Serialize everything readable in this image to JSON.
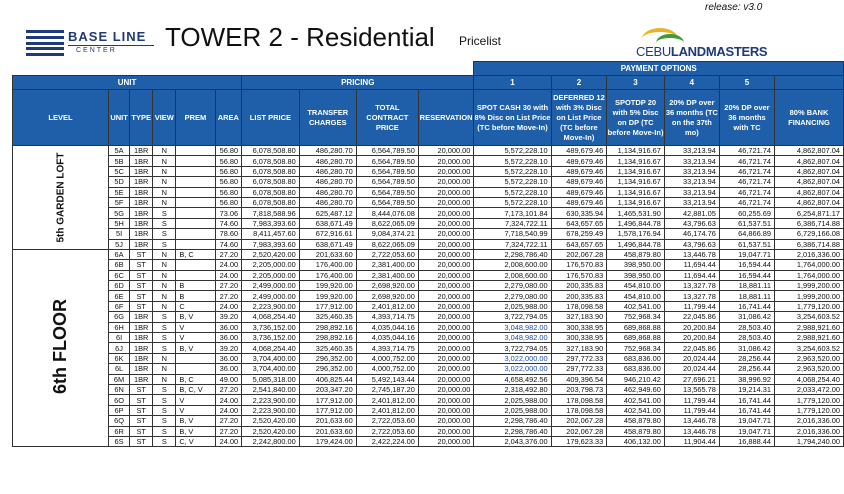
{
  "header": {
    "release": "release: v3.0",
    "brand_name": "BASE LINE",
    "brand_sub": "CENTER",
    "title": "TOWER 2 - Residential",
    "subtitle": "Pricelist",
    "developer_logo_a": "CEBU",
    "developer_logo_b": "LANDMASTERS"
  },
  "table": {
    "group_unit": "UNIT",
    "group_pricing": "PRICING",
    "group_payment": "PAYMENT OPTIONS",
    "option_numbers": [
      "1",
      "2",
      "3",
      "4",
      "5",
      ""
    ],
    "columns": {
      "level": "LEVEL",
      "unit": "UNIT",
      "type": "TYPE",
      "view": "VIEW",
      "prem": "PREM",
      "area": "AREA",
      "list_price": "LIST PRICE",
      "transfer": "TRANSFER CHARGES",
      "tcp": "TOTAL CONTRACT PRICE",
      "reservation": "RESERVATION",
      "opt1": "SPOT CASH 30 with 8% Disc on List Price (TC before Move-In)",
      "opt2": "DEFERRED 12 with 3% Disc on List Price (TC before Move-In)",
      "opt3": "SPOTDP 20 with 5% Disc on DP (TC before Move-In)",
      "opt4": "20% DP over 36 months (TC on the 37th mo)",
      "opt5": "20% DP over 36 months with TC",
      "opt6": "80% BANK FINANCING"
    },
    "levels": [
      {
        "name": "5th GARDEN LOFT",
        "rows": [
          [
            "5A",
            "1BR",
            "N",
            "",
            "56.80",
            "6,078,508.80",
            "486,280.70",
            "6,564,789.50",
            "20,000.00",
            "5,572,228.10",
            "489,679.46",
            "1,134,916.67",
            "33,213.94",
            "46,721.74",
            "4,862,807.04"
          ],
          [
            "5B",
            "1BR",
            "N",
            "",
            "56.80",
            "6,078,508.80",
            "486,280.70",
            "6,564,789.50",
            "20,000.00",
            "5,572,228.10",
            "489,679.46",
            "1,134,916.67",
            "33,213.94",
            "46,721.74",
            "4,862,807.04"
          ],
          [
            "5C",
            "1BR",
            "N",
            "",
            "56.80",
            "6,078,508.80",
            "486,280.70",
            "6,564,789.50",
            "20,000.00",
            "5,572,228.10",
            "489,679.46",
            "1,134,916.67",
            "33,213.94",
            "46,721.74",
            "4,862,807.04"
          ],
          [
            "5D",
            "1BR",
            "N",
            "",
            "56.80",
            "6,078,508.80",
            "486,280.70",
            "6,564,789.50",
            "20,000.00",
            "5,572,228.10",
            "489,679.46",
            "1,134,916.67",
            "33,213.94",
            "46,721.74",
            "4,862,807.04"
          ],
          [
            "5E",
            "1BR",
            "N",
            "",
            "56.80",
            "6,078,508.80",
            "486,280.70",
            "6,564,789.50",
            "20,000.00",
            "5,572,228.10",
            "489,679.46",
            "1,134,916.67",
            "33,213.94",
            "46,721.74",
            "4,862,807.04"
          ],
          [
            "5F",
            "1BR",
            "N",
            "",
            "56.80",
            "6,078,508.80",
            "486,280.70",
            "6,564,789.50",
            "20,000.00",
            "5,572,228.10",
            "489,679.46",
            "1,134,916.67",
            "33,213.94",
            "46,721.74",
            "4,862,807.04"
          ],
          [
            "5G",
            "1BR",
            "S",
            "",
            "73.06",
            "7,818,588.96",
            "625,487.12",
            "8,444,076.08",
            "20,000.00",
            "7,173,101.84",
            "630,335.94",
            "1,465,531.90",
            "42,881.05",
            "60,255.69",
            "6,254,871.17"
          ],
          [
            "5H",
            "1BR",
            "S",
            "",
            "74.60",
            "7,983,393.60",
            "638,671.49",
            "8,622,065.09",
            "20,000.00",
            "7,324,722.11",
            "643,657.65",
            "1,496,844.78",
            "43,796.63",
            "61,537.51",
            "6,386,714.88"
          ],
          [
            "5I",
            "1BR",
            "S",
            "",
            "78.60",
            "8,411,457.60",
            "672,916.61",
            "9,084,374.21",
            "20,000.00",
            "7,718,540.99",
            "678,259.49",
            "1,578,176.94",
            "46,174.76",
            "64,866.89",
            "6,729,166.08"
          ],
          [
            "5J",
            "1BR",
            "S",
            "",
            "74.60",
            "7,983,393.60",
            "638,671.49",
            "8,622,065.09",
            "20,000.00",
            "7,324,722.11",
            "643,657.65",
            "1,496,844.78",
            "43,796.63",
            "61,537.51",
            "6,386,714.88"
          ]
        ]
      },
      {
        "name": "6th FLOOR",
        "rows": [
          [
            "6A",
            "ST",
            "N",
            "B, C",
            "27.20",
            "2,520,420.00",
            "201,633.60",
            "2,722,053.60",
            "20,000.00",
            "2,298,786.40",
            "202,067.28",
            "458,879.80",
            "13,446.78",
            "19,047.71",
            "2,016,336.00"
          ],
          [
            "6B",
            "ST",
            "N",
            "",
            "24.00",
            "2,205,000.00",
            "176,400.00",
            "2,381,400.00",
            "20,000.00",
            "2,008,600.00",
            "176,570.83",
            "398,950.00",
            "11,694.44",
            "16,594.44",
            "1,764,000.00"
          ],
          [
            "6C",
            "ST",
            "N",
            "",
            "24.00",
            "2,205,000.00",
            "176,400.00",
            "2,381,400.00",
            "20,000.00",
            "2,008,600.00",
            "176,570.83",
            "398,950.00",
            "11,694.44",
            "16,594.44",
            "1,764,000.00"
          ],
          [
            "6D",
            "ST",
            "N",
            "B",
            "27.20",
            "2,499,000.00",
            "199,920.00",
            "2,698,920.00",
            "20,000.00",
            "2,279,080.00",
            "200,335.83",
            "454,810.00",
            "13,327.78",
            "18,881.11",
            "1,999,200.00"
          ],
          [
            "6E",
            "ST",
            "N",
            "B",
            "27.20",
            "2,499,000.00",
            "199,920.00",
            "2,698,920.00",
            "20,000.00",
            "2,279,080.00",
            "200,335.83",
            "454,810.00",
            "13,327.78",
            "18,881.11",
            "1,999,200.00"
          ],
          [
            "6F",
            "ST",
            "N",
            "C",
            "24.00",
            "2,223,900.00",
            "177,912.00",
            "2,401,812.00",
            "20,000.00",
            "2,025,988.00",
            "178,098.58",
            "402,541.00",
            "11,799.44",
            "16,741.44",
            "1,779,120.00"
          ],
          [
            "6G",
            "1BR",
            "S",
            "B, V",
            "39.20",
            "4,068,254.40",
            "325,460.35",
            "4,393,714.75",
            "20,000.00",
            "3,722,794.05",
            "327,183.90",
            "752,968.34",
            "22,045.86",
            "31,086.42",
            "3,254,603.52"
          ],
          [
            "6H",
            "1BR",
            "S",
            "V",
            "36.00",
            "3,736,152.00",
            "298,892.16",
            "4,035,044.16",
            "20,000.00",
            "3,048,982.00",
            "300,338.95",
            "689,868.88",
            "20,200.84",
            "28,503.40",
            "2,988,921.60"
          ],
          [
            "6I",
            "1BR",
            "S",
            "V",
            "36.00",
            "3,736,152.00",
            "298,892.16",
            "4,035,044.16",
            "20,000.00",
            "3,048,982.00",
            "300,338.95",
            "689,868.88",
            "20,200.84",
            "28,503.40",
            "2,988,921.60"
          ],
          [
            "6J",
            "1BR",
            "S",
            "B, V",
            "39.20",
            "4,068,254.40",
            "325,460.35",
            "4,393,714.75",
            "20,000.00",
            "3,722,794.05",
            "327,183.90",
            "752,968.34",
            "22,045.86",
            "31,086.42",
            "3,254,603.52"
          ],
          [
            "6K",
            "1BR",
            "N",
            "",
            "36.00",
            "3,704,400.00",
            "296,352.00",
            "4,000,752.00",
            "20,000.00",
            "3,022,000.00",
            "297,772.33",
            "683,836.00",
            "20,024.44",
            "28,256.44",
            "2,963,520.00"
          ],
          [
            "6L",
            "1BR",
            "N",
            "",
            "36.00",
            "3,704,400.00",
            "296,352.00",
            "4,000,752.00",
            "20,000.00",
            "3,022,000.00",
            "297,772.33",
            "683,836.00",
            "20,024.44",
            "28,256.44",
            "2,963,520.00"
          ],
          [
            "6M",
            "1BR",
            "N",
            "B, C",
            "49.00",
            "5,085,318.00",
            "406,825.44",
            "5,492,143.44",
            "20,000.00",
            "4,658,492.56",
            "409,396.54",
            "946,210.42",
            "27,696.21",
            "38,996.92",
            "4,068,254.40"
          ],
          [
            "6N",
            "ST",
            "S",
            "B, C, V",
            "27.20",
            "2,541,840.00",
            "203,347.20",
            "2,745,187.20",
            "20,000.00",
            "2,318,492.80",
            "203,798.73",
            "462,949.60",
            "13,565.78",
            "19,214.31",
            "2,033,472.00"
          ],
          [
            "6O",
            "ST",
            "S",
            "V",
            "24.00",
            "2,223,900.00",
            "177,912.00",
            "2,401,812.00",
            "20,000.00",
            "2,025,988.00",
            "178,098.58",
            "402,541.00",
            "11,799.44",
            "16,741.44",
            "1,779,120.00"
          ],
          [
            "6P",
            "ST",
            "S",
            "V",
            "24.00",
            "2,223,900.00",
            "177,912.00",
            "2,401,812.00",
            "20,000.00",
            "2,025,988.00",
            "178,098.58",
            "402,541.00",
            "11,799.44",
            "16,741.44",
            "1,779,120.00"
          ],
          [
            "6Q",
            "ST",
            "S",
            "B, V",
            "27.20",
            "2,520,420.00",
            "201,633.60",
            "2,722,053.60",
            "20,000.00",
            "2,298,786.40",
            "202,067.28",
            "458,879.80",
            "13,446.78",
            "19,047.71",
            "2,016,336.00"
          ],
          [
            "6R",
            "ST",
            "S",
            "B, V",
            "27.20",
            "2,520,420.00",
            "201,633.60",
            "2,722,053.60",
            "20,000.00",
            "2,298,786.40",
            "202,067.28",
            "458,879.80",
            "13,446.78",
            "19,047.71",
            "2,016,336.00"
          ],
          [
            "6S",
            "ST",
            "S",
            "C, V",
            "24.00",
            "2,242,800.00",
            "179,424.00",
            "2,422,224.00",
            "20,000.00",
            "2,043,376.00",
            "179,623.33",
            "406,132.00",
            "11,904.44",
            "16,888.44",
            "1,794,240.00"
          ]
        ]
      }
    ],
    "highlight_rows": [
      "6H",
      "6I",
      "6K",
      "6L"
    ],
    "highlight_color": "#1f4fb0"
  }
}
